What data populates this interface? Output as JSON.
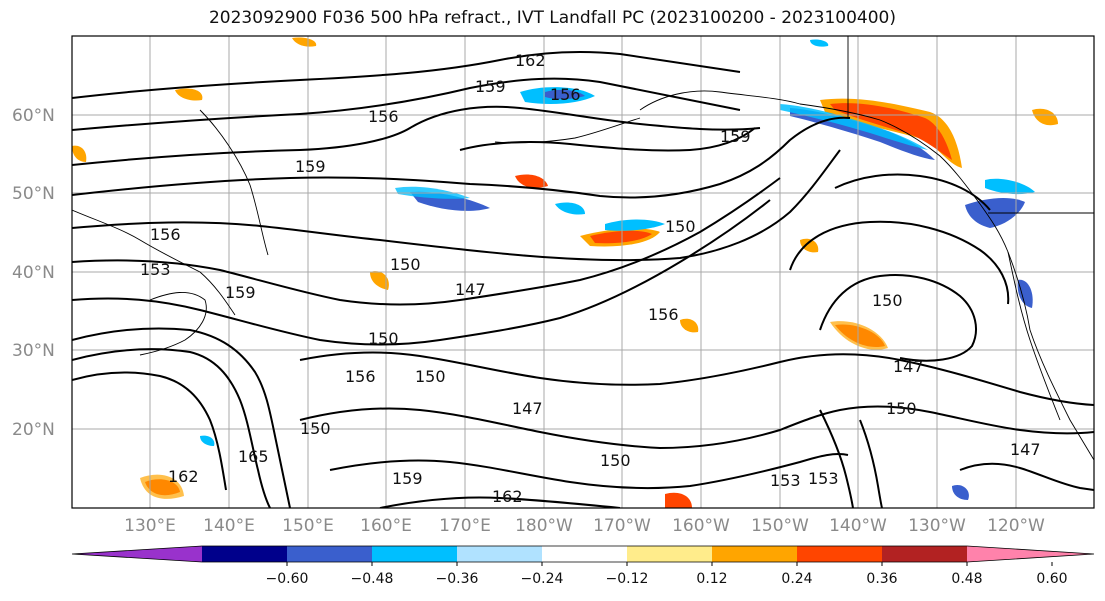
{
  "title": "2023092900 F036 500 hPa refract., IVT Landfall PC (2023100200 - 2023100400)",
  "lat_labels": [
    "60°N",
    "50°N",
    "40°N",
    "30°N",
    "20°N"
  ],
  "lon_labels": [
    "130°E",
    "140°E",
    "150°E",
    "160°E",
    "170°E",
    "180°W",
    "170°W",
    "160°W",
    "150°W",
    "140°W",
    "130°W",
    "120°W"
  ],
  "contour_labels": [
    "162",
    "159",
    "156",
    "156",
    "159",
    "159",
    "156",
    "153",
    "150",
    "159",
    "150",
    "147",
    "150",
    "156",
    "150",
    "150",
    "165",
    "162",
    "159",
    "150",
    "147",
    "162",
    "153",
    "150",
    "147",
    "150",
    "153",
    "156",
    "147"
  ],
  "colorbar": {
    "ticks": [
      "−0.60",
      "−0.48",
      "−0.36",
      "−0.24",
      "−0.12",
      "0.12",
      "0.24",
      "0.36",
      "0.48",
      "0.60"
    ],
    "colors": [
      "#9932cc",
      "#00008b",
      "#3a5fcd",
      "#00bfff",
      "#b0e2ff",
      "#ffffff",
      "#ffec8b",
      "#ffa500",
      "#ff4500",
      "#b22222",
      "#ff82ab"
    ]
  }
}
